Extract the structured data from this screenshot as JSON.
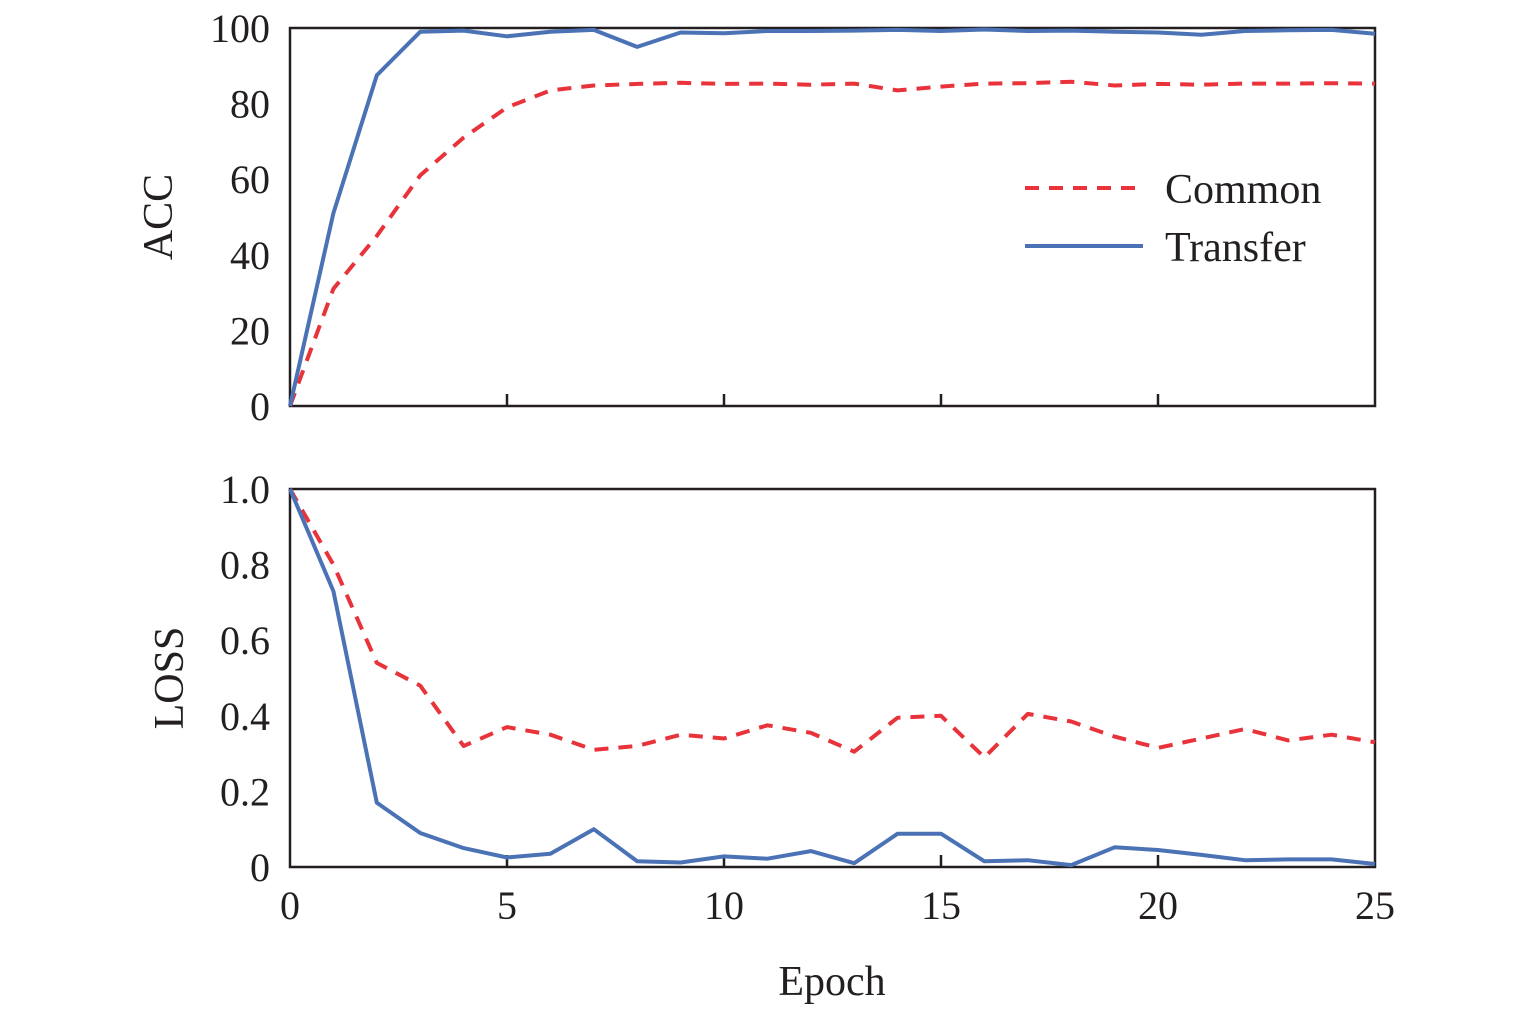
{
  "chart_data": [
    {
      "type": "line",
      "title": "",
      "xlabel": "",
      "ylabel": "ACC",
      "xlim": [
        0,
        25
      ],
      "ylim": [
        0,
        100
      ],
      "xticks": [
        0,
        5,
        10,
        15,
        20,
        25
      ],
      "xtick_labels_shown": false,
      "yticks": [
        0,
        20,
        40,
        60,
        80,
        100
      ],
      "ytick_labels": [
        "0",
        "20",
        "40",
        "60",
        "80",
        "100"
      ],
      "grid": false,
      "legend": {
        "position": "center-right",
        "entries": [
          "Common",
          "Transfer"
        ]
      },
      "x": [
        0,
        1,
        2,
        3,
        4,
        5,
        6,
        7,
        8,
        9,
        10,
        11,
        12,
        13,
        14,
        15,
        16,
        17,
        18,
        19,
        20,
        21,
        22,
        23,
        24,
        25
      ],
      "series": [
        {
          "name": "Common",
          "color": "#e8333b",
          "style": "dashed",
          "values": [
            0,
            31,
            45,
            61,
            71,
            79,
            83.5,
            84.8,
            85.2,
            85.5,
            85.2,
            85.3,
            85,
            85.3,
            83.5,
            84.5,
            85.3,
            85.4,
            85.8,
            84.8,
            85.2,
            85,
            85.3,
            85.3,
            85.4,
            85.3
          ]
        },
        {
          "name": "Transfer",
          "color": "#4a72b5",
          "style": "solid",
          "values": [
            0,
            51,
            87.5,
            99,
            99.3,
            97.8,
            99,
            99.5,
            95,
            98.8,
            98.6,
            99.2,
            99.2,
            99.3,
            99.5,
            99.2,
            99.6,
            99.2,
            99.3,
            99,
            98.8,
            98.2,
            99.2,
            99.4,
            99.5,
            98.5
          ]
        }
      ]
    },
    {
      "type": "line",
      "title": "",
      "xlabel": "Epoch",
      "ylabel": "LOSS",
      "xlim": [
        0,
        25
      ],
      "ylim": [
        0,
        1.0
      ],
      "xticks": [
        0,
        5,
        10,
        15,
        20,
        25
      ],
      "xtick_labels": [
        "0",
        "5",
        "10",
        "15",
        "20",
        "25"
      ],
      "yticks": [
        0,
        0.2,
        0.4,
        0.6,
        0.8,
        1.0
      ],
      "ytick_labels": [
        "0",
        "0.2",
        "0.4",
        "0.6",
        "0.8",
        "1.0"
      ],
      "grid": false,
      "x": [
        0,
        1,
        2,
        3,
        4,
        5,
        6,
        7,
        8,
        9,
        10,
        11,
        12,
        13,
        14,
        15,
        16,
        17,
        18,
        19,
        20,
        21,
        22,
        23,
        24,
        25
      ],
      "series": [
        {
          "name": "Common",
          "color": "#e8333b",
          "style": "dashed",
          "values": [
            1.0,
            0.8,
            0.54,
            0.48,
            0.32,
            0.37,
            0.35,
            0.31,
            0.32,
            0.35,
            0.34,
            0.375,
            0.355,
            0.305,
            0.395,
            0.4,
            0.29,
            0.405,
            0.385,
            0.345,
            0.315,
            0.34,
            0.365,
            0.335,
            0.35,
            0.33
          ]
        },
        {
          "name": "Transfer",
          "color": "#4a72b5",
          "style": "solid",
          "values": [
            1.0,
            0.73,
            0.17,
            0.09,
            0.05,
            0.025,
            0.035,
            0.1,
            0.015,
            0.012,
            0.028,
            0.022,
            0.042,
            0.01,
            0.088,
            0.088,
            0.015,
            0.018,
            0.005,
            0.052,
            0.045,
            0.032,
            0.018,
            0.02,
            0.02,
            0.008
          ]
        }
      ]
    }
  ]
}
